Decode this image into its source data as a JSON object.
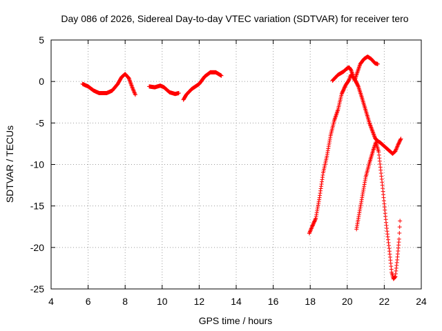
{
  "chart_data": {
    "type": "scatter",
    "title": "Day 086 of 2026, Sidereal Day-to-day VTEC variation (SDTVAR) for receiver tero",
    "xlabel": "GPS time / hours",
    "ylabel": "SDTVAR / TECUs",
    "xlim": [
      4,
      24
    ],
    "ylim": [
      -25,
      5
    ],
    "xticks": [
      4,
      6,
      8,
      10,
      12,
      14,
      16,
      18,
      20,
      22,
      24
    ],
    "yticks": [
      -25,
      -20,
      -15,
      -10,
      -5,
      0,
      5
    ],
    "grid": true,
    "marker": "+",
    "color": "#ff0000",
    "series": [
      {
        "name": "SDTVAR",
        "segments": [
          [
            [
              5.7,
              -0.3
            ],
            [
              6.0,
              -0.6
            ],
            [
              6.3,
              -1.1
            ],
            [
              6.6,
              -1.4
            ],
            [
              7.0,
              -1.4
            ],
            [
              7.3,
              -1.1
            ],
            [
              7.6,
              -0.3
            ],
            [
              7.8,
              0.5
            ],
            [
              8.0,
              0.9
            ],
            [
              8.2,
              0.4
            ],
            [
              8.4,
              -0.8
            ],
            [
              8.55,
              -1.6
            ]
          ],
          [
            [
              9.3,
              -0.6
            ],
            [
              9.6,
              -0.7
            ],
            [
              9.9,
              -0.5
            ],
            [
              10.1,
              -0.7
            ],
            [
              10.4,
              -1.3
            ],
            [
              10.7,
              -1.5
            ],
            [
              10.9,
              -1.4
            ]
          ],
          [
            [
              11.15,
              -2.2
            ],
            [
              11.3,
              -1.6
            ],
            [
              11.6,
              -0.9
            ],
            [
              12.0,
              -0.3
            ],
            [
              12.3,
              0.6
            ],
            [
              12.6,
              1.1
            ],
            [
              12.9,
              1.1
            ],
            [
              13.2,
              0.7
            ]
          ],
          [
            [
              17.95,
              -18.3
            ],
            [
              18.1,
              -17.5
            ],
            [
              18.3,
              -16.5
            ],
            [
              18.5,
              -14.0
            ],
            [
              18.7,
              -11.0
            ],
            [
              18.9,
              -9.0
            ],
            [
              19.1,
              -6.5
            ],
            [
              19.3,
              -4.7
            ],
            [
              19.5,
              -3.4
            ],
            [
              19.7,
              -1.5
            ],
            [
              19.9,
              -0.5
            ],
            [
              20.1,
              0.2
            ],
            [
              20.2,
              0.8
            ],
            [
              20.4,
              0.3
            ],
            [
              20.6,
              -0.6
            ],
            [
              20.8,
              -2.0
            ],
            [
              21.0,
              -3.5
            ],
            [
              21.2,
              -5.0
            ],
            [
              21.4,
              -6.2
            ],
            [
              21.5,
              -6.8
            ],
            [
              21.6,
              -7.1
            ],
            [
              21.8,
              -7.4
            ],
            [
              22.0,
              -7.8
            ],
            [
              22.3,
              -8.4
            ],
            [
              22.45,
              -8.7
            ],
            [
              22.6,
              -8.4
            ],
            [
              22.75,
              -7.6
            ],
            [
              22.9,
              -6.9
            ]
          ],
          [
            [
              19.2,
              0.1
            ],
            [
              19.5,
              0.8
            ],
            [
              19.8,
              1.2
            ],
            [
              20.0,
              1.6
            ],
            [
              20.1,
              1.7
            ],
            [
              20.2,
              1.4
            ],
            [
              20.3,
              0.8
            ],
            [
              20.4,
              0.1
            ],
            [
              20.5,
              0.8
            ],
            [
              20.7,
              2.1
            ],
            [
              20.9,
              2.7
            ],
            [
              21.1,
              3.0
            ],
            [
              21.3,
              2.7
            ],
            [
              21.5,
              2.2
            ],
            [
              21.65,
              2.1
            ]
          ],
          [
            [
              20.5,
              -17.8
            ],
            [
              20.6,
              -16.5
            ],
            [
              20.8,
              -14.0
            ],
            [
              21.0,
              -11.5
            ],
            [
              21.2,
              -9.8
            ],
            [
              21.4,
              -8.3
            ],
            [
              21.55,
              -7.3
            ],
            [
              21.7,
              -8.5
            ],
            [
              21.9,
              -12.5
            ],
            [
              22.1,
              -17.0
            ],
            [
              22.3,
              -20.8
            ],
            [
              22.4,
              -23.0
            ],
            [
              22.5,
              -23.8
            ],
            [
              22.6,
              -23.5
            ],
            [
              22.7,
              -21.5
            ],
            [
              22.8,
              -19.0
            ],
            [
              22.85,
              -16.8
            ]
          ]
        ]
      }
    ]
  }
}
